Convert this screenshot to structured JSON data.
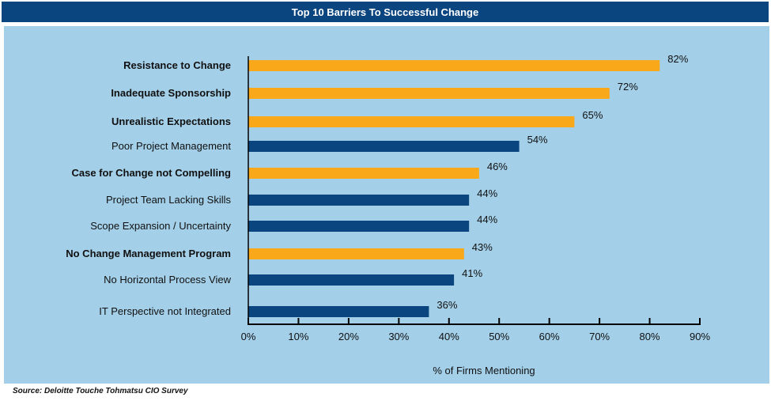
{
  "header": {
    "title": "Top 10 Barriers To Successful Change"
  },
  "footer": {
    "source": "Source: Deloitte Touche Tohmatsu CIO Survey"
  },
  "chart_data": {
    "type": "bar",
    "orientation": "horizontal",
    "title": "Top 10 Barriers To Successful Change",
    "xlabel": "% of Firms Mentioning",
    "ylabel": "",
    "xlim": [
      0,
      90
    ],
    "xticks": [
      0,
      10,
      20,
      30,
      40,
      50,
      60,
      70,
      80,
      90
    ],
    "xtick_labels": [
      "0%",
      "10%",
      "20%",
      "30%",
      "40%",
      "50%",
      "60%",
      "70%",
      "80%",
      "90%"
    ],
    "grid": false,
    "categories": [
      "Resistance to Change",
      "Inadequate Sponsorship",
      "Unrealistic Expectations",
      "Poor Project Management",
      "Case for Change not Compelling",
      "Project Team Lacking Skills",
      "Scope Expansion / Uncertainty",
      "No Change Management Program",
      "No Horizontal Process View",
      "IT Perspective not Integrated"
    ],
    "values": [
      82,
      72,
      65,
      54,
      46,
      44,
      44,
      43,
      41,
      36
    ],
    "value_labels": [
      "82%",
      "72%",
      "65%",
      "54%",
      "46%",
      "44%",
      "44%",
      "43%",
      "41%",
      "36%"
    ],
    "highlighted": [
      true,
      true,
      true,
      false,
      true,
      false,
      false,
      true,
      false,
      false
    ],
    "colors": {
      "highlight": "#f9a81a",
      "normal": "#0b4580",
      "background": "#a3cfe8",
      "title_bar": "#0b4580"
    }
  }
}
